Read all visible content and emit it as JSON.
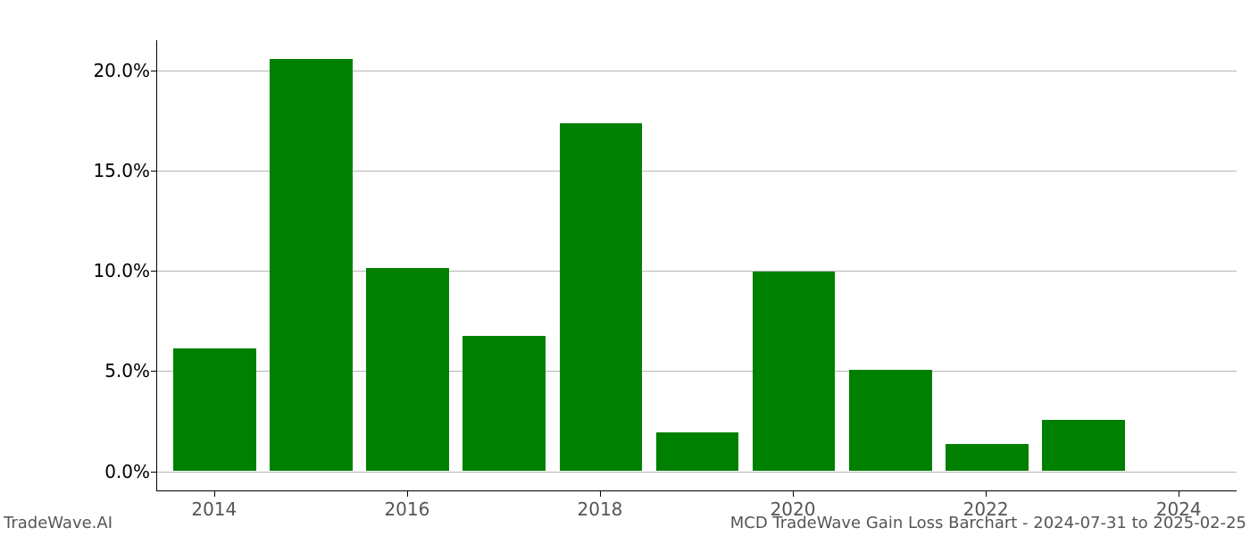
{
  "chart": {
    "type": "bar",
    "background_color": "#ffffff",
    "grid_color": "#b6b6b6",
    "axis_color": "#000000",
    "tick_label_color": "#555555",
    "y_tick_label_color": "#000000",
    "bar_color": "#008000",
    "label_fontsize": 20,
    "footer_fontsize": 18,
    "years": [
      2014,
      2015,
      2016,
      2017,
      2018,
      2019,
      2020,
      2021,
      2022,
      2023,
      2024
    ],
    "values": [
      6.1,
      20.5,
      10.1,
      6.7,
      17.3,
      1.9,
      9.9,
      5.0,
      1.3,
      2.5,
      0.0
    ],
    "x_tick_years": [
      2014,
      2016,
      2018,
      2020,
      2022,
      2024
    ],
    "x_tick_labels": [
      "2014",
      "2016",
      "2018",
      "2020",
      "2022",
      "2024"
    ],
    "y_ticks": [
      0.0,
      5.0,
      10.0,
      15.0,
      20.0
    ],
    "y_tick_labels": [
      "0.0%",
      "5.0%",
      "10.0%",
      "15.0%",
      "20.0%"
    ],
    "ylim": [
      -1.0,
      21.5
    ],
    "xlim": [
      2013.4,
      2024.6
    ],
    "bar_width": 0.86
  },
  "footer": {
    "left": "TradeWave.AI",
    "right": "MCD TradeWave Gain Loss Barchart - 2024-07-31 to 2025-02-25"
  }
}
